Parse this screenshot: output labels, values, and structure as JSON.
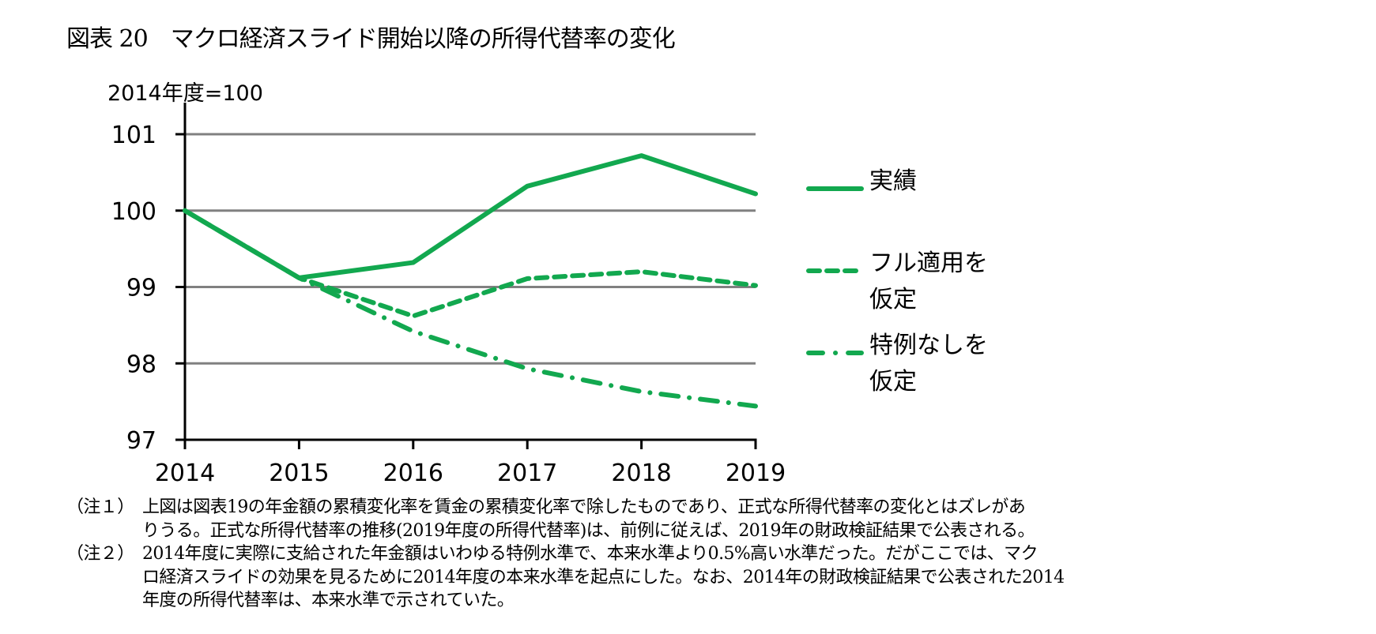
{
  "title": "図表 20　マクロ経済スライド開始以降の所得代替率の変化",
  "colors": {
    "series": "#12a84f",
    "grid": "#808080",
    "axis": "#000000"
  },
  "chart_data": {
    "type": "line",
    "title": "マクロ経済スライド開始以降の所得代替率の変化",
    "ylabel": "2014年度=100",
    "xlabel": "",
    "x": [
      "2014",
      "2015",
      "2016",
      "2017",
      "2018",
      "2019"
    ],
    "ylim": [
      97,
      101
    ],
    "yticks": [
      "97",
      "98",
      "99",
      "100",
      "101"
    ],
    "grid": true,
    "legend_position": "right",
    "series": [
      {
        "name": "実績",
        "label_lines": [
          "実績"
        ],
        "style": "solid",
        "values": [
          100,
          99.12,
          99.32,
          100.32,
          100.72,
          100.22
        ]
      },
      {
        "name": "フル適用を仮定",
        "label_lines": [
          "フル適用を",
          "仮定"
        ],
        "style": "dashed",
        "values": [
          100,
          99.12,
          98.62,
          99.11,
          99.2,
          99.02
        ]
      },
      {
        "name": "特例なしを仮定",
        "label_lines": [
          "特例なしを",
          "仮定"
        ],
        "style": "dash-dot",
        "values": [
          100,
          99.12,
          98.42,
          97.93,
          97.63,
          97.44
        ]
      }
    ]
  },
  "notes": [
    {
      "label": "（注１）",
      "lines": [
        "上図は図表19の年金額の累積変化率を賃金の累積変化率で除したものであり、正式な所得代替率の変化とはズレがあ",
        "りうる。正式な所得代替率の推移(2019年度の所得代替率)は、前例に従えば、2019年の財政検証結果で公表される。"
      ]
    },
    {
      "label": "（注２）",
      "lines": [
        "2014年度に実際に支給された年金額はいわゆる特例水準で、本来水準より0.5%高い水準だった。だがここでは、マク",
        "ロ経済スライドの効果を見るために2014年度の本来水準を起点にした。なお、2014年の財政検証結果で公表された2014",
        "年度の所得代替率は、本来水準で示されていた。"
      ]
    }
  ]
}
